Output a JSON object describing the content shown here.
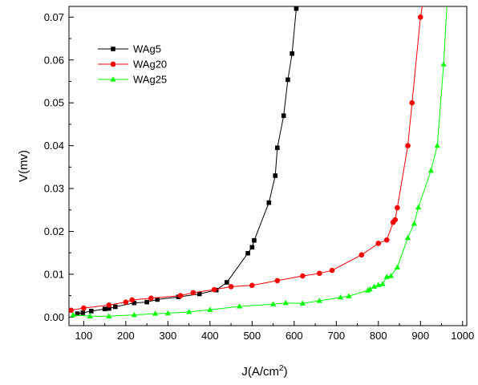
{
  "chart_data": {
    "type": "line",
    "title": "",
    "xlabel": "J(A/cm",
    "xlabel_sup": "2",
    "xlabel_tail": ")",
    "ylabel": "V(mv)",
    "xlim": [
      65,
      1010
    ],
    "ylim": [
      -0.002,
      0.0725
    ],
    "xticks": [
      100,
      200,
      300,
      400,
      500,
      600,
      700,
      800,
      900,
      1000
    ],
    "yticks": [
      0.0,
      0.01,
      0.02,
      0.03,
      0.04,
      0.05,
      0.06,
      0.07
    ],
    "xtick_labels": [
      "100",
      "200",
      "300",
      "400",
      "500",
      "600",
      "700",
      "800",
      "900",
      "1000"
    ],
    "ytick_labels": [
      "0.00",
      "0.01",
      "0.02",
      "0.03",
      "0.04",
      "0.05",
      "0.06",
      "0.07"
    ],
    "grid": false,
    "legend_position": "top-left",
    "series": [
      {
        "name": "WAg5",
        "color": "#000000",
        "marker": "square",
        "points": [
          [
            85,
            0.0008
          ],
          [
            98,
            0.001
          ],
          [
            118,
            0.0014
          ],
          [
            150,
            0.0019
          ],
          [
            160,
            0.002
          ],
          [
            175,
            0.0024
          ],
          [
            220,
            0.0033
          ],
          [
            250,
            0.0035
          ],
          [
            275,
            0.0041
          ],
          [
            325,
            0.0047
          ],
          [
            375,
            0.0054
          ],
          [
            415,
            0.0063
          ],
          [
            440,
            0.0081
          ],
          [
            490,
            0.0149
          ],
          [
            500,
            0.0163
          ],
          [
            505,
            0.0179
          ],
          [
            540,
            0.0267
          ],
          [
            555,
            0.033
          ],
          [
            560,
            0.0395
          ],
          [
            575,
            0.047
          ],
          [
            585,
            0.0554
          ],
          [
            595,
            0.0615
          ],
          [
            605,
            0.072
          ]
        ]
      },
      {
        "name": "WAg20",
        "color": "#ff0000",
        "marker": "circle",
        "points": [
          [
            70,
            0.0016
          ],
          [
            100,
            0.0021
          ],
          [
            160,
            0.0028
          ],
          [
            200,
            0.0035
          ],
          [
            215,
            0.004
          ],
          [
            260,
            0.0044
          ],
          [
            330,
            0.005
          ],
          [
            360,
            0.0057
          ],
          [
            410,
            0.0064
          ],
          [
            450,
            0.0071
          ],
          [
            500,
            0.0074
          ],
          [
            560,
            0.0085
          ],
          [
            620,
            0.0096
          ],
          [
            660,
            0.0102
          ],
          [
            690,
            0.0109
          ],
          [
            760,
            0.0145
          ],
          [
            800,
            0.0172
          ],
          [
            820,
            0.018
          ],
          [
            835,
            0.0221
          ],
          [
            840,
            0.0227
          ],
          [
            845,
            0.0255
          ],
          [
            870,
            0.04
          ],
          [
            880,
            0.05
          ],
          [
            900,
            0.07
          ],
          [
            905,
            0.073
          ]
        ]
      },
      {
        "name": "WAg25",
        "color": "#00ff00",
        "marker": "triangle",
        "points": [
          [
            75,
            0.0005
          ],
          [
            115,
            0.0002
          ],
          [
            160,
            0.0002
          ],
          [
            220,
            0.0005
          ],
          [
            270,
            0.0008
          ],
          [
            300,
            0.0009
          ],
          [
            350,
            0.0012
          ],
          [
            400,
            0.0017
          ],
          [
            470,
            0.0025
          ],
          [
            550,
            0.003
          ],
          [
            580,
            0.0033
          ],
          [
            620,
            0.0032
          ],
          [
            660,
            0.0038
          ],
          [
            710,
            0.0046
          ],
          [
            730,
            0.0049
          ],
          [
            775,
            0.0062
          ],
          [
            780,
            0.0065
          ],
          [
            790,
            0.0071
          ],
          [
            800,
            0.0075
          ],
          [
            810,
            0.0077
          ],
          [
            820,
            0.0094
          ],
          [
            830,
            0.0096
          ],
          [
            845,
            0.0116
          ],
          [
            870,
            0.0185
          ],
          [
            885,
            0.0218
          ],
          [
            895,
            0.0256
          ],
          [
            925,
            0.0342
          ],
          [
            940,
            0.04
          ],
          [
            955,
            0.059
          ],
          [
            963,
            0.073
          ]
        ]
      }
    ]
  }
}
